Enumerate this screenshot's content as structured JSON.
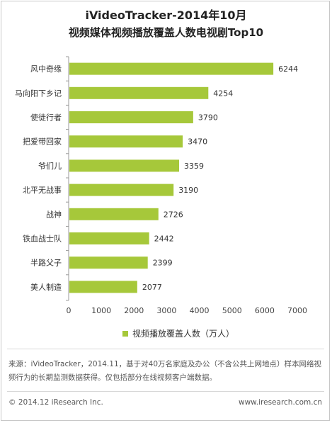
{
  "title_line1": "iVideoTracker-2014年10月",
  "title_line2": "视频媒体视频播放覆盖人数电视剧Top10",
  "chart_data": {
    "type": "bar",
    "orientation": "horizontal",
    "categories": [
      "风中奇缘",
      "马向阳下乡记",
      "使徒行者",
      "把爱带回家",
      "爷们儿",
      "北平无战事",
      "战神",
      "铁血战士队",
      "半路父子",
      "美人制造"
    ],
    "values": [
      6244,
      4254,
      3790,
      3470,
      3359,
      3190,
      2726,
      2442,
      2399,
      2077
    ],
    "x_ticks": [
      "0",
      "1000",
      "2000",
      "3000",
      "4000",
      "5000",
      "6000",
      "7000"
    ],
    "xlim": [
      0,
      7000
    ],
    "legend": "视频播放覆盖人数（万人）",
    "legend_position": "bottom",
    "bar_color": "#a6c83a",
    "grid": false
  },
  "note": "来源：iVideoTracker，2014.11，基于对40万名家庭及办公（不含公共上网地点）样本网络视频行为的长期监测数据获得。仅包括部分在线视频客户端数据。",
  "footer_left": "© 2014.12 iResearch Inc.",
  "footer_right": "www.iresearch.com.cn"
}
